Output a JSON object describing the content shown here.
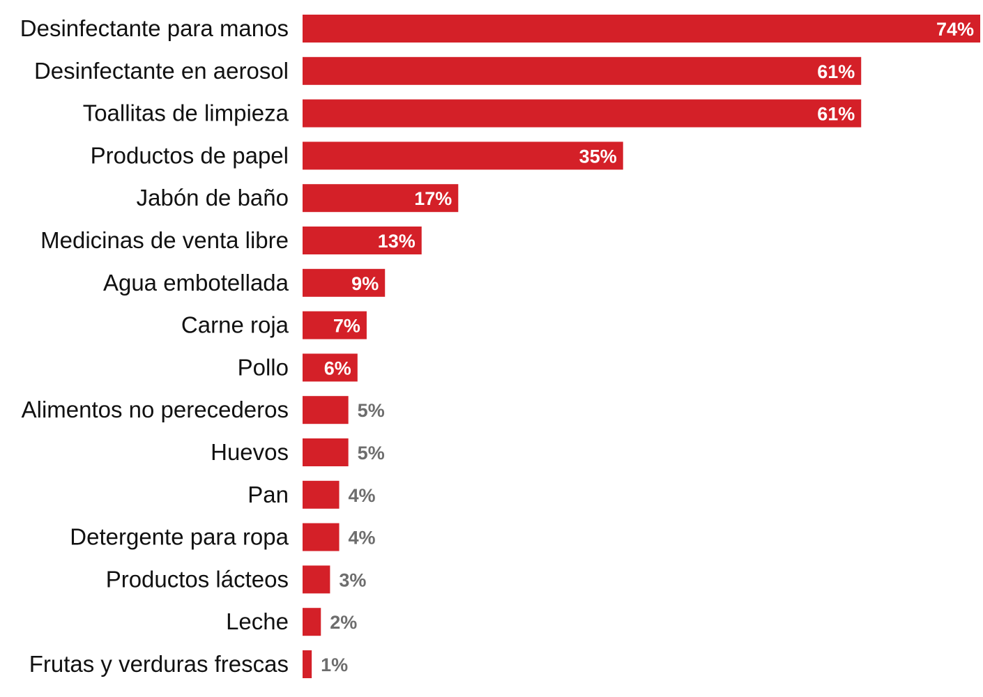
{
  "chart_data": {
    "type": "bar",
    "orientation": "horizontal",
    "categories": [
      "Desinfectante para manos",
      "Desinfectante en aerosol",
      "Toallitas de limpieza",
      "Productos de papel",
      "Jabón de baño",
      "Medicinas de venta libre",
      "Agua embotellada",
      "Carne roja",
      "Pollo",
      "Alimentos no perecederos",
      "Huevos",
      "Pan",
      "Detergente para ropa",
      "Productos lácteos",
      "Leche",
      "Frutas y verduras frescas"
    ],
    "values": [
      74,
      61,
      61,
      35,
      17,
      13,
      9,
      7,
      6,
      5,
      5,
      4,
      4,
      3,
      2,
      1
    ],
    "value_labels": [
      "74%",
      "61%",
      "61%",
      "35%",
      "17%",
      "13%",
      "9%",
      "7%",
      "6%",
      "5%",
      "5%",
      "4%",
      "4%",
      "3%",
      "2%",
      "1%"
    ],
    "title": "",
    "xlabel": "",
    "ylabel": "",
    "xlim": [
      0,
      74
    ],
    "grid": false,
    "legend": "none",
    "colors": {
      "bar": "#d42028",
      "label_inside": "#ffffff",
      "label_outside": "#6d6d6d",
      "category_text": "#111111"
    }
  }
}
